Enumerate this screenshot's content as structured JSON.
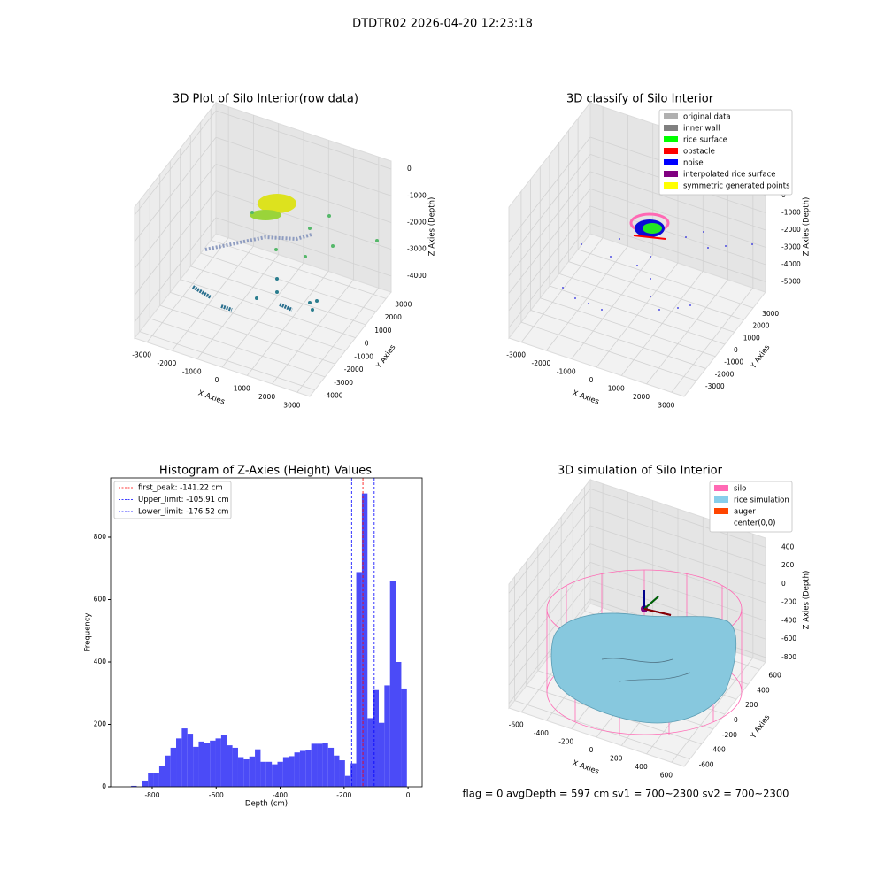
{
  "title": "DTDTR02 2026-04-20 12:23:18",
  "footer": "flag = 0     avgDepth = 597 cm  sv1 = 700~2300  sv2 = 700~2300",
  "chart_data": [
    {
      "type": "scatter3d",
      "title": "3D Plot of Silo Interior(row data)",
      "xlabel": "X Axies",
      "ylabel": "Y Axies",
      "zlabel": "Z Axies (Depth)",
      "xlim": [
        -3500,
        3500
      ],
      "xticks": [
        -3000,
        -2000,
        -1000,
        0,
        1000,
        2000,
        3000
      ],
      "ylim": [
        -4500,
        3500
      ],
      "yticks": [
        -4000,
        -3000,
        -2000,
        -1000,
        0,
        1000,
        2000,
        3000
      ],
      "zlim": [
        -4600,
        300
      ],
      "zticks": [
        -4000,
        -3000,
        -2000,
        -1000,
        0
      ]
    },
    {
      "type": "scatter3d",
      "title": "3D classify of Silo Interior",
      "xlabel": "X Axies",
      "ylabel": "Y Axies",
      "zlabel": "Z Axies (Depth)",
      "xlim": [
        -3500,
        3500
      ],
      "xticks": [
        -3000,
        -2000,
        -1000,
        0,
        1000,
        2000,
        3000
      ],
      "ylim": [
        -4300,
        4300
      ],
      "yticks": [
        -3000,
        -2000,
        -1000,
        0,
        1000,
        2000,
        3000
      ],
      "zlim": [
        -5600,
        2000
      ],
      "zticks": [
        -5000,
        -4000,
        -3000,
        -2000,
        -1000,
        0
      ],
      "legend": [
        {
          "name": "original data",
          "color": "#b0b0b0"
        },
        {
          "name": "inner wall",
          "color": "#808080"
        },
        {
          "name": "rice surface",
          "color": "#00ff00"
        },
        {
          "name": "obstacle",
          "color": "#ff0000"
        },
        {
          "name": "noise",
          "color": "#0000ff"
        },
        {
          "name": "interpolated rice surface",
          "color": "#800080"
        },
        {
          "name": "symmetric generated points",
          "color": "#ffff00"
        }
      ]
    },
    {
      "type": "histogram",
      "title": "Histogram of Z-Axies (Height) Values",
      "xlabel": "Depth (cm)",
      "ylabel": "Frequency",
      "color": "#4b4bf7",
      "xlim": [
        -930,
        44
      ],
      "xticks": [
        -800,
        -600,
        -400,
        -200,
        0
      ],
      "ylim": [
        0,
        990
      ],
      "yticks": [
        0,
        200,
        400,
        600,
        800
      ],
      "bins": [
        -866,
        -848.4,
        -830.8,
        -813.2,
        -795.6,
        -778,
        -760.4,
        -742.8,
        -725.2,
        -707.6,
        -690,
        -672.4,
        -654.8,
        -637.2,
        -619.6,
        -602,
        -584.4,
        -566.8,
        -549.2,
        -531.6,
        -514,
        -496.4,
        -478.8,
        -461.2,
        -443.6,
        -426,
        -408.4,
        -390.8,
        -373.2,
        -355.6,
        -338,
        -320.4,
        -302.8,
        -285.2,
        -267.6,
        -250,
        -232.4,
        -214.8,
        -197.2,
        -179.6,
        -162,
        -144.4,
        -126.8,
        -109.2,
        -91.6,
        -74,
        -56.4,
        -38.8,
        -21.2,
        -3.6
      ],
      "values": [
        3,
        0,
        20,
        43,
        45,
        68,
        100,
        125,
        155,
        187,
        170,
        128,
        145,
        140,
        148,
        155,
        165,
        133,
        125,
        95,
        88,
        97,
        120,
        80,
        80,
        72,
        80,
        95,
        98,
        110,
        115,
        118,
        138,
        138,
        140,
        125,
        100,
        85,
        35,
        75,
        688,
        940,
        220,
        310,
        205,
        325,
        660,
        400,
        315
      ],
      "lines": [
        {
          "name": "first_peak: -141.22 cm",
          "value": -141.22,
          "color": "#ff0000"
        },
        {
          "name": "Upper_limit: -105.91 cm",
          "value": -105.91,
          "color": "#0000ff"
        },
        {
          "name": "Lower_limit: -176.52 cm",
          "value": -176.52,
          "color": "#0000ff"
        }
      ]
    },
    {
      "type": "surface3d",
      "title": "3D simulation of Silo Interior",
      "xlabel": "X Axies",
      "ylabel": "Y Axies",
      "zlabel": "Z Axies (Depth)",
      "xlim": [
        -700,
        700
      ],
      "xticks": [
        -600,
        -400,
        -200,
        0,
        200,
        400,
        600
      ],
      "ylim": [
        -700,
        700
      ],
      "yticks": [
        -600,
        -400,
        -200,
        0,
        200,
        400,
        600
      ],
      "zlim": [
        -850,
        500
      ],
      "zticks": [
        -800,
        -600,
        -400,
        -200,
        0,
        200,
        400
      ],
      "legend": [
        {
          "name": "silo",
          "color": "#ff69b4"
        },
        {
          "name": "rice simulation",
          "color": "#87ceeb"
        },
        {
          "name": "auger",
          "color": "#ff4500"
        },
        {
          "name": "center(0,0)",
          "color": "#ffffff"
        }
      ]
    }
  ]
}
